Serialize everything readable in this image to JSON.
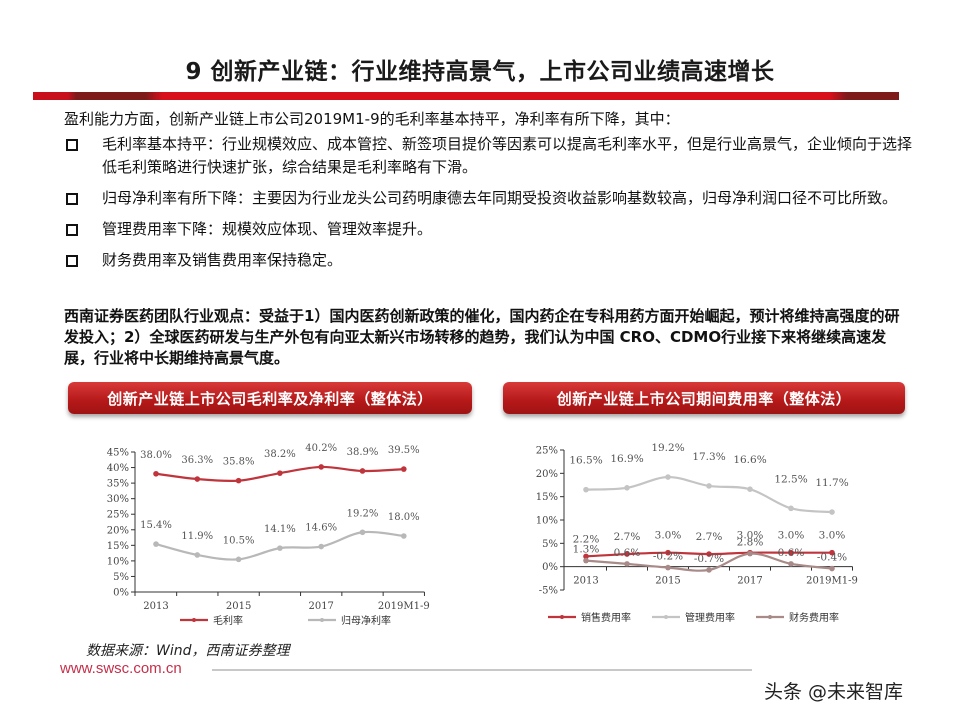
{
  "header": {
    "title": "9 创新产业链：行业维持高景气，上市公司业绩高速增长",
    "bar_colors": {
      "main": "#d8101c",
      "dark": "#7e1a1a"
    }
  },
  "content": {
    "intro": "盈利能力方面，创新产业链上市公司2019M1-9的毛利率基本持平，净利率有所下降，其中：",
    "bullets": [
      {
        "text": "毛利率基本持平：行业规模效应、成本管控、新签项目提价等因素可以提高毛利率水平，但是行业高景气，企业倾向于选择低毛利策略进行快速扩张，综合结果是毛利率略有下滑。"
      },
      {
        "text": "归母净利率有所下降：主要因为行业龙头公司药明康德去年同期受投资收益影响基数较高，归母净利润口径不可比所致。"
      },
      {
        "text": "管理费用率下降：规模效应体现、管理效率提升。"
      },
      {
        "text": "财务费用率及销售费用率保持稳定。"
      }
    ],
    "viewpoint": "西南证券医药团队行业观点：受益于1）国内医药创新政策的催化，国内药企在专科用药方面开始崛起，预计将维持高强度的研发投入；2）全球医药研发与生产外包有向亚太新兴市场转移的趋势，我们认为中国 CRO、CDMO行业接下来将继续高速发展，行业将中长期维持高景气度。"
  },
  "chart_data": [
    {
      "type": "line",
      "title": "创新产业链上市公司毛利率及净利率（整体法）",
      "categories": [
        "2013",
        "2014",
        "2015",
        "2016",
        "2017",
        "2018",
        "2019M1-9"
      ],
      "tick_labels": [
        "2013",
        "2015",
        "2017",
        "2019M1-9"
      ],
      "series": [
        {
          "name": "毛利率",
          "color": "#c0343c",
          "values": [
            38.0,
            36.3,
            35.8,
            38.2,
            40.2,
            38.9,
            39.5
          ],
          "labels": [
            "38.0%",
            "36.3%",
            "35.8%",
            "38.2%",
            "40.2%",
            "38.9%",
            "39.5%"
          ]
        },
        {
          "name": "归母净利率",
          "color": "#b8b8b8",
          "values": [
            15.4,
            11.9,
            10.5,
            14.1,
            14.6,
            19.2,
            18.0
          ],
          "labels": [
            "15.4%",
            "11.9%",
            "10.5%",
            "14.1%",
            "14.6%",
            "19.2%",
            "18.0%"
          ]
        }
      ],
      "yticks": [
        "0%",
        "5%",
        "10%",
        "15%",
        "20%",
        "25%",
        "30%",
        "35%",
        "40%",
        "45%"
      ],
      "ylim": [
        0,
        45
      ],
      "xlabel": "",
      "ylabel": "",
      "grid": false,
      "legend_position": "bottom"
    },
    {
      "type": "line",
      "title": "创新产业链上市公司期间费用率（整体法）",
      "categories": [
        "2013",
        "2014",
        "2015",
        "2016",
        "2017",
        "2018",
        "2019M1-9"
      ],
      "tick_labels": [
        "2013",
        "2015",
        "2017",
        "2019M1-9"
      ],
      "series": [
        {
          "name": "销售费用率",
          "color": "#c0343c",
          "values": [
            2.2,
            2.7,
            3.0,
            2.7,
            3.0,
            3.0,
            3.0
          ],
          "labels": [
            "2.2%",
            "2.7%",
            "3.0%",
            "2.7%",
            "3.0%",
            "3.0%",
            "3.0%"
          ]
        },
        {
          "name": "管理费用率",
          "color": "#c4c4c4",
          "values": [
            16.5,
            16.9,
            19.2,
            17.3,
            16.6,
            12.5,
            11.7
          ],
          "labels": [
            "16.5%",
            "16.9%",
            "19.2%",
            "17.3%",
            "16.6%",
            "12.5%",
            "11.7%"
          ]
        },
        {
          "name": "财务费用率",
          "color": "#a88a88",
          "values": [
            1.3,
            0.6,
            -0.2,
            -0.7,
            2.8,
            0.6,
            -0.4
          ],
          "labels": [
            "1.3%",
            "0.6%",
            "-0.2%",
            "-0.7%",
            "2.8%",
            "0.6%",
            "-0.4%"
          ]
        }
      ],
      "yticks": [
        "-5%",
        "0%",
        "5%",
        "10%",
        "15%",
        "20%",
        "25%"
      ],
      "ylim": [
        -5,
        25
      ],
      "xlabel": "",
      "ylabel": "",
      "grid": false,
      "legend_position": "bottom"
    }
  ],
  "footer": {
    "source": "数据来源：Wind，西南证券整理",
    "url": "www.swsc.com.cn",
    "watermark": "头条 @未来智库"
  }
}
